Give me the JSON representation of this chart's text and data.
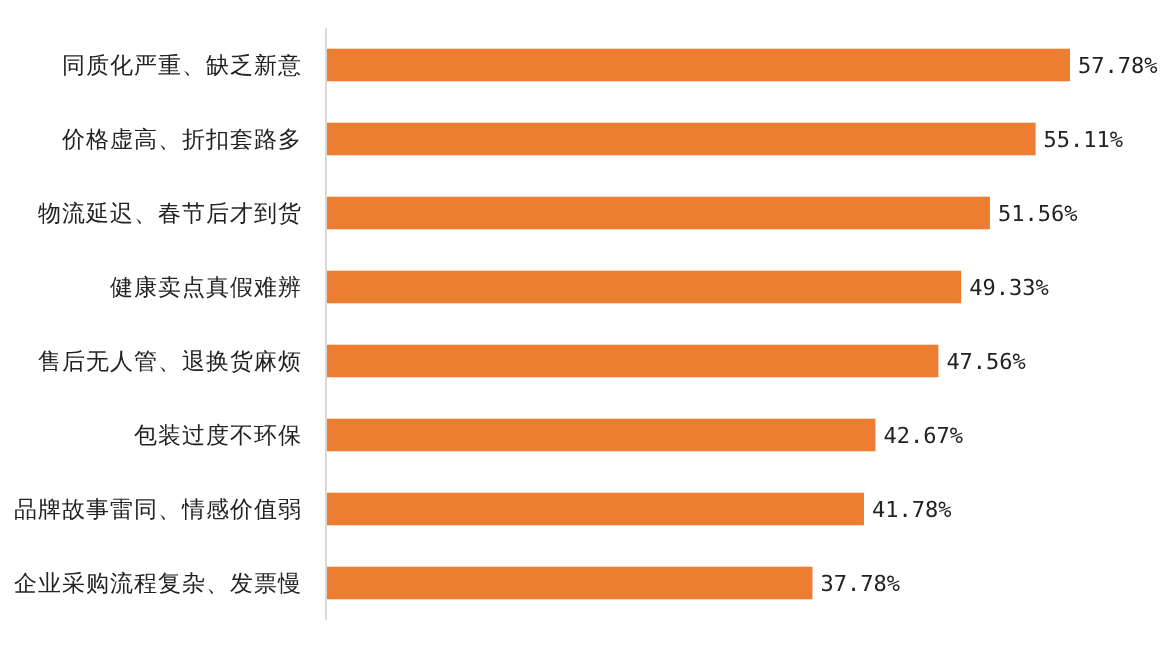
{
  "chart_data": {
    "type": "bar",
    "orientation": "horizontal",
    "categories": [
      "同质化严重、缺乏新意",
      "价格虚高、折扣套路多",
      "物流延迟、春节后才到货",
      "健康卖点真假难辨",
      "售后无人管、退换货麻烦",
      "包装过度不环保",
      "品牌故事雷同、情感价值弱",
      "企业采购流程复杂、发票慢"
    ],
    "values": [
      57.78,
      55.11,
      51.56,
      49.33,
      47.56,
      42.67,
      41.78,
      37.78
    ],
    "value_labels": [
      "57.78%",
      "55.11%",
      "51.56%",
      "49.33%",
      "47.56%",
      "42.67%",
      "41.78%",
      "37.78%"
    ],
    "color": "#ed7d31"
  }
}
